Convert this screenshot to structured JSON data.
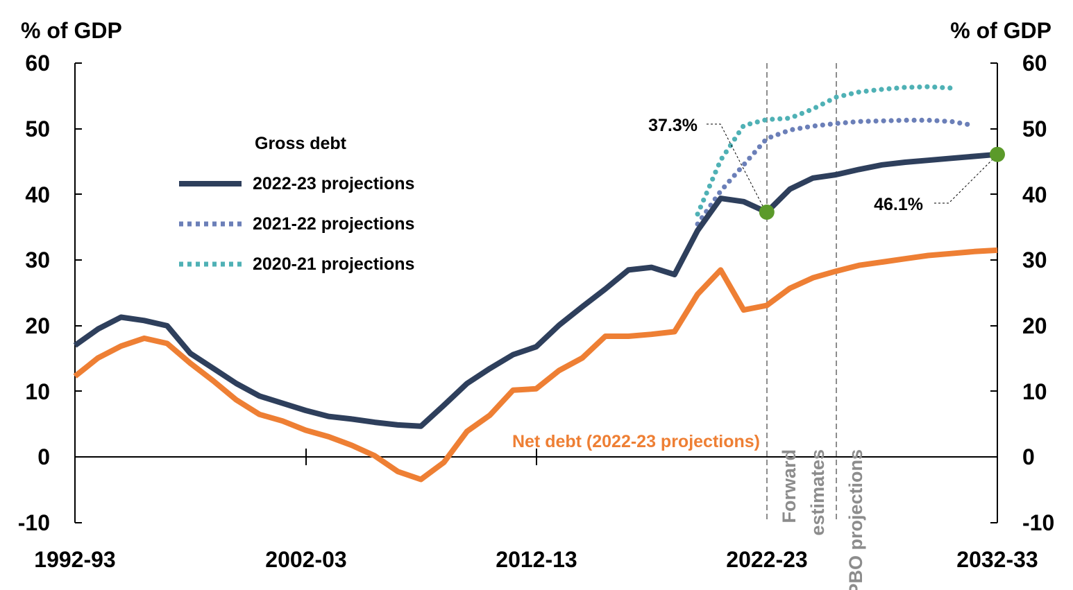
{
  "chart_data": {
    "type": "line",
    "x_labels": [
      "1992-93",
      "2002-03",
      "2012-13",
      "2022-23",
      "2032-33"
    ],
    "y_axis_left_label": "% of GDP",
    "y_axis_right_label": "% of GDP",
    "y_ticks": [
      "60",
      "50",
      "40",
      "30",
      "20",
      "10",
      "0",
      "-10"
    ],
    "ylim": [
      -10,
      60
    ],
    "xlim": [
      1992,
      2032
    ],
    "legend": {
      "title": "Gross debt",
      "position": "left",
      "entries": [
        "2022-23 projections",
        "2021-22 projections",
        "2020-21 projections"
      ]
    },
    "net_debt_label": "Net debt (2022-23 projections)",
    "vlines": [
      {
        "x": 2022,
        "label": "Forward estimates",
        "label_lines": [
          "Forward",
          "estimates"
        ]
      },
      {
        "x": 2025,
        "label": "PBO projections",
        "label_lines": [
          "PBO projections"
        ]
      }
    ],
    "annotations": [
      {
        "text": "37.3%",
        "x": 2022,
        "y": 37.3
      },
      {
        "text": "46.1%",
        "x": 2032,
        "y": 46.1
      }
    ],
    "colors": {
      "gross_2223": "#2e3f5c",
      "gross_2122": "#6b7fb8",
      "gross_2021": "#4fb1b5",
      "net_debt": "#ee7f34",
      "marker": "#5b9a2a",
      "vline": "#8c8c8c",
      "text_orange": "#ee7f34",
      "text_gray": "#8c8c8c"
    },
    "series": [
      {
        "name": "2022-23 projections",
        "style": "solid",
        "x": [
          1992,
          1993,
          1994,
          1995,
          1996,
          1997,
          1998,
          1999,
          2000,
          2001,
          2002,
          2003,
          2004,
          2005,
          2006,
          2007,
          2008,
          2009,
          2010,
          2011,
          2012,
          2013,
          2014,
          2015,
          2016,
          2017,
          2018,
          2019,
          2020,
          2021,
          2022,
          2023,
          2024,
          2025,
          2026,
          2027,
          2028,
          2029,
          2030,
          2031,
          2032
        ],
        "values": [
          17.0,
          19.5,
          21.3,
          20.8,
          20.0,
          15.8,
          13.5,
          11.2,
          9.3,
          8.2,
          7.1,
          6.2,
          5.8,
          5.3,
          4.9,
          4.7,
          7.9,
          11.2,
          13.5,
          15.6,
          16.8,
          20.1,
          22.9,
          25.6,
          28.5,
          28.9,
          27.8,
          34.5,
          39.4,
          38.9,
          37.3,
          40.8,
          42.5,
          43.0,
          43.8,
          44.5,
          44.9,
          45.2,
          45.5,
          45.8,
          46.1
        ]
      },
      {
        "name": "2021-22 projections",
        "style": "dotted",
        "x": [
          2019,
          2020,
          2021,
          2022,
          2023,
          2024,
          2025,
          2026,
          2027,
          2028,
          2029,
          2030,
          2031
        ],
        "values": [
          35.5,
          40.5,
          44.5,
          48.5,
          49.8,
          50.4,
          50.8,
          51.1,
          51.2,
          51.3,
          51.3,
          51.1,
          50.5
        ]
      },
      {
        "name": "2020-21 projections",
        "style": "dotted",
        "x": [
          2019,
          2020,
          2021,
          2022,
          2023,
          2024,
          2025,
          2026,
          2027,
          2028,
          2029,
          2030
        ],
        "values": [
          37.0,
          45.2,
          50.5,
          51.4,
          51.6,
          53.0,
          54.8,
          55.6,
          56.0,
          56.3,
          56.4,
          56.2
        ]
      },
      {
        "name": "Net debt (2022-23 projections)",
        "style": "solid",
        "x": [
          1992,
          1993,
          1994,
          1995,
          1996,
          1997,
          1998,
          1999,
          2000,
          2001,
          2002,
          2003,
          2004,
          2005,
          2006,
          2007,
          2008,
          2009,
          2010,
          2011,
          2012,
          2013,
          2014,
          2015,
          2016,
          2017,
          2018,
          2019,
          2020,
          2021,
          2022,
          2023,
          2024,
          2025,
          2026,
          2027,
          2028,
          2029,
          2030,
          2031,
          2032
        ],
        "values": [
          12.3,
          15.1,
          16.9,
          18.1,
          17.3,
          14.3,
          11.6,
          8.7,
          6.5,
          5.5,
          4.1,
          3.1,
          1.8,
          0.2,
          -2.2,
          -3.4,
          -0.8,
          3.9,
          6.4,
          10.2,
          10.4,
          13.2,
          15.1,
          18.4,
          18.4,
          18.7,
          19.1,
          24.8,
          28.5,
          22.4,
          23.1,
          25.7,
          27.3,
          28.3,
          29.2,
          29.7,
          30.2,
          30.7,
          31.0,
          31.3,
          31.5
        ]
      }
    ]
  }
}
